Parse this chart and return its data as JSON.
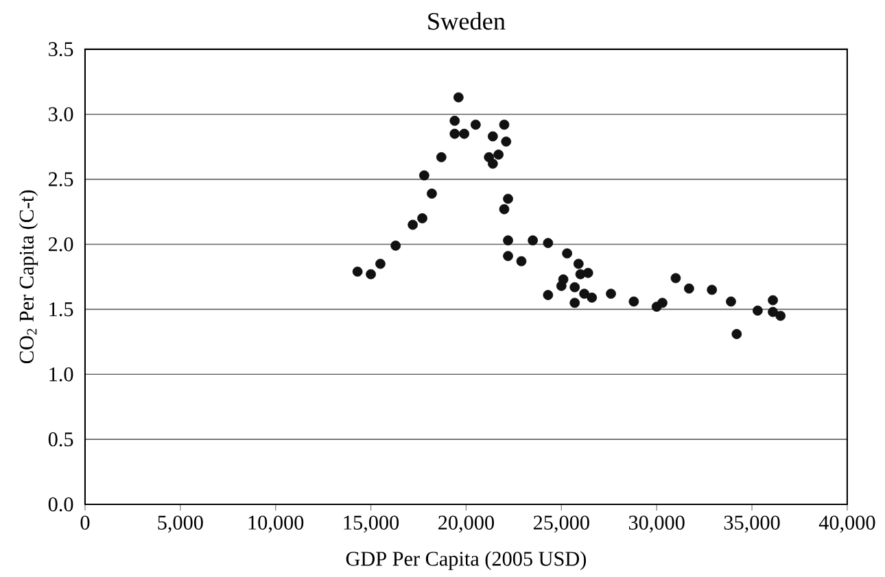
{
  "chart_data": {
    "type": "scatter",
    "title": "Sweden",
    "xlabel": "GDP Per Capita (2005 USD)",
    "ylabel": "CO$_{2}$ Per Capita (C-t)",
    "x": [
      14300,
      15000,
      15500,
      16300,
      17200,
      17700,
      18200,
      17800,
      18700,
      19600,
      19400,
      19400,
      19900,
      20500,
      22000,
      21400,
      22100,
      21200,
      21400,
      21700,
      22200,
      22000,
      22200,
      22200,
      22900,
      23500,
      24300,
      25300,
      25900,
      26000,
      26400,
      24300,
      25000,
      25100,
      25700,
      25700,
      26200,
      26600,
      27600,
      28800,
      30000,
      30300,
      31000,
      31700,
      32900,
      33900,
      34200,
      35300,
      36100,
      36100,
      36500
    ],
    "values": [
      1.79,
      1.77,
      1.85,
      1.99,
      2.15,
      2.2,
      2.39,
      2.53,
      2.67,
      3.13,
      2.95,
      2.85,
      2.85,
      2.92,
      2.92,
      2.83,
      2.79,
      2.67,
      2.62,
      2.69,
      2.35,
      2.27,
      2.03,
      1.91,
      1.87,
      2.03,
      2.01,
      1.93,
      1.85,
      1.77,
      1.78,
      1.61,
      1.68,
      1.73,
      1.67,
      1.55,
      1.62,
      1.59,
      1.62,
      1.56,
      1.52,
      1.55,
      1.74,
      1.66,
      1.65,
      1.56,
      1.31,
      1.49,
      1.57,
      1.48,
      1.45
    ],
    "color": "#111111",
    "marker": "circle",
    "grid": "y",
    "xlim": [
      0,
      40000
    ],
    "xticks": [
      {
        "value": 0,
        "label": "0"
      },
      {
        "value": 5000,
        "label": "5,000"
      },
      {
        "value": 10000,
        "label": "10,000"
      },
      {
        "value": 15000,
        "label": "15,000"
      },
      {
        "value": 20000,
        "label": "20,000"
      },
      {
        "value": 25000,
        "label": "25,000"
      },
      {
        "value": 30000,
        "label": "30,000"
      },
      {
        "value": 35000,
        "label": "35,000"
      },
      {
        "value": 40000,
        "label": "40,000"
      }
    ],
    "ylim": [
      0,
      3.5
    ],
    "yticks": [
      {
        "value": 0,
        "label": "0.0"
      },
      {
        "value": 0.5,
        "label": "0.5"
      },
      {
        "value": 1,
        "label": "1.0"
      },
      {
        "value": 1.5,
        "label": "1.5"
      },
      {
        "value": 2,
        "label": "2.0"
      },
      {
        "value": 2.5,
        "label": "2.5"
      },
      {
        "value": 3,
        "label": "3.0"
      },
      {
        "value": 3.5,
        "label": "3.5"
      }
    ]
  }
}
